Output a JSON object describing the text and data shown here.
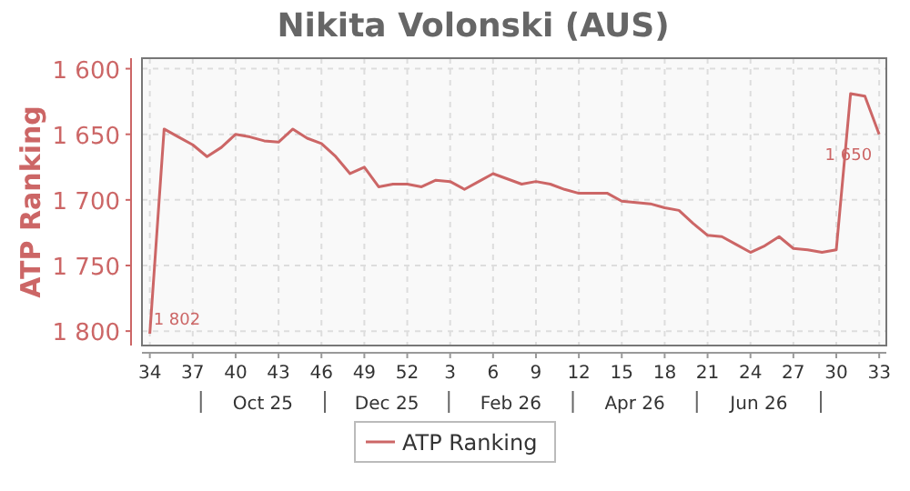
{
  "chart_data": {
    "type": "line",
    "title": "Nikita Volonski (AUS)",
    "ylabel": "ATP Ranking",
    "categories": [
      "34",
      null,
      null,
      "37",
      null,
      null,
      "40",
      null,
      null,
      "43",
      null,
      null,
      "46",
      null,
      null,
      "49",
      null,
      null,
      "52",
      null,
      null,
      "3",
      null,
      null,
      "6",
      null,
      null,
      "9",
      null,
      null,
      "12",
      null,
      null,
      "15",
      null,
      null,
      "18",
      null,
      null,
      "21",
      null,
      null,
      "24",
      null,
      null,
      "27",
      null,
      null,
      "30",
      null,
      null,
      "33"
    ],
    "series": [
      {
        "name": "ATP Ranking",
        "color": "#cc6666",
        "values": [
          1802,
          1646,
          1652,
          1658,
          1667,
          1660,
          1650,
          1652,
          1655,
          1656,
          1646,
          1653,
          1657,
          1667,
          1680,
          1675,
          1690,
          1688,
          1688,
          1690,
          1685,
          1686,
          1692,
          1686,
          1680,
          1684,
          1688,
          1686,
          1688,
          1692,
          1695,
          1695,
          1695,
          1701,
          1702,
          1703,
          1706,
          1708,
          1718,
          1727,
          1728,
          1734,
          1740,
          1735,
          1728,
          1737,
          1738,
          1740,
          1738,
          1619,
          1621,
          1650
        ],
        "value_labels": [
          "1 802",
          null,
          null,
          null,
          null,
          null,
          null,
          null,
          null,
          null,
          null,
          null,
          null,
          null,
          null,
          null,
          null,
          null,
          null,
          null,
          null,
          null,
          null,
          null,
          null,
          null,
          null,
          null,
          null,
          null,
          null,
          null,
          null,
          null,
          null,
          null,
          null,
          null,
          null,
          null,
          null,
          null,
          null,
          null,
          null,
          null,
          null,
          null,
          null,
          null,
          null,
          "1 650"
        ]
      }
    ],
    "annotations": [
      "Oct 25",
      "Dec 25",
      "Feb 26",
      "Apr 26",
      "Jun 26"
    ],
    "ylim": [
      1811,
      1592
    ],
    "yticks": [
      {
        "value": 1600,
        "label": "1 600"
      },
      {
        "value": 1650,
        "label": "1 650"
      },
      {
        "value": 1700,
        "label": "1 700"
      },
      {
        "value": 1750,
        "label": "1 750"
      },
      {
        "value": 1800,
        "label": "1 800"
      }
    ],
    "grid": true,
    "legend": "bottom",
    "marker": "none",
    "line_style": "solid"
  }
}
